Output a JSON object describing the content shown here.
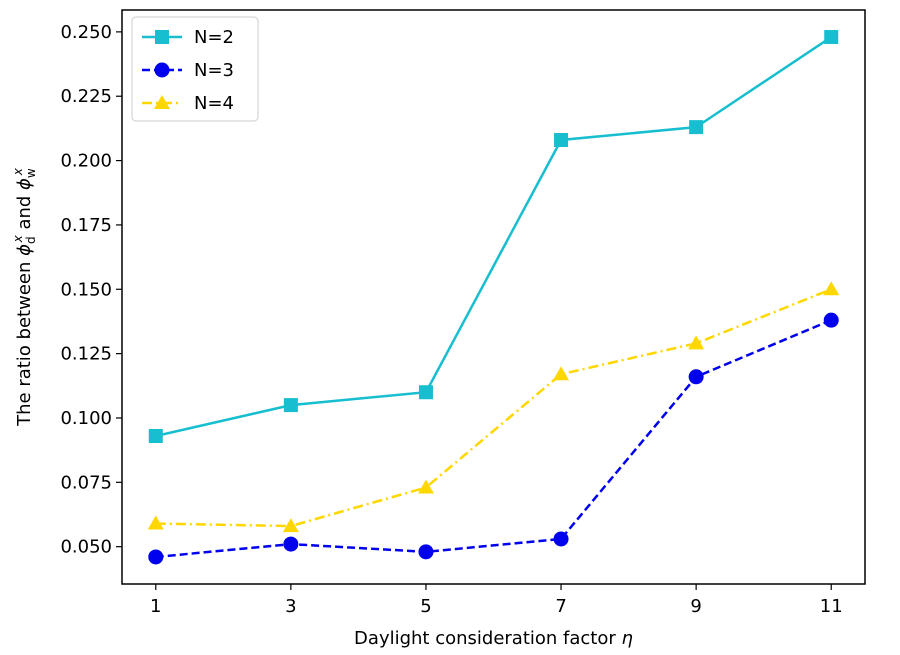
{
  "chart_data": {
    "type": "line",
    "title": "",
    "xlabel": "Daylight consideration factor",
    "xlabel_symbol": "η",
    "ylabel": "The ratio between",
    "ylabel_symbol_d": "ϕ",
    "ylabel_sub_d": "d",
    "ylabel_sup_d": "x",
    "ylabel_and": "and",
    "ylabel_symbol_w": "ϕ",
    "ylabel_sub_w": "w",
    "ylabel_sup_w": "x",
    "x": [
      1,
      3,
      5,
      7,
      9,
      11
    ],
    "xticks": [
      "1",
      "3",
      "5",
      "7",
      "9",
      "11"
    ],
    "yticks": [
      "0.050",
      "0.075",
      "0.100",
      "0.125",
      "0.150",
      "0.175",
      "0.200",
      "0.225",
      "0.250"
    ],
    "ytick_values": [
      0.05,
      0.075,
      0.1,
      0.125,
      0.15,
      0.175,
      0.2,
      0.225,
      0.25
    ],
    "xlim": [
      0.5,
      11.5
    ],
    "ylim": [
      0.0355,
      0.2585
    ],
    "grid": false,
    "legend_position": "top-left",
    "series": [
      {
        "name": "N=2",
        "values": [
          0.093,
          0.105,
          0.11,
          0.208,
          0.213,
          0.248
        ],
        "color": "#17becf",
        "marker": "square",
        "linestyle": "solid"
      },
      {
        "name": "N=3",
        "values": [
          0.046,
          0.051,
          0.048,
          0.053,
          0.116,
          0.138
        ],
        "color": "#0000ee",
        "marker": "circle",
        "linestyle": "dashed"
      },
      {
        "name": "N=4",
        "values": [
          0.059,
          0.058,
          0.073,
          0.117,
          0.129,
          0.15
        ],
        "color": "#ffd700",
        "marker": "triangle",
        "linestyle": "dashdot"
      }
    ]
  }
}
